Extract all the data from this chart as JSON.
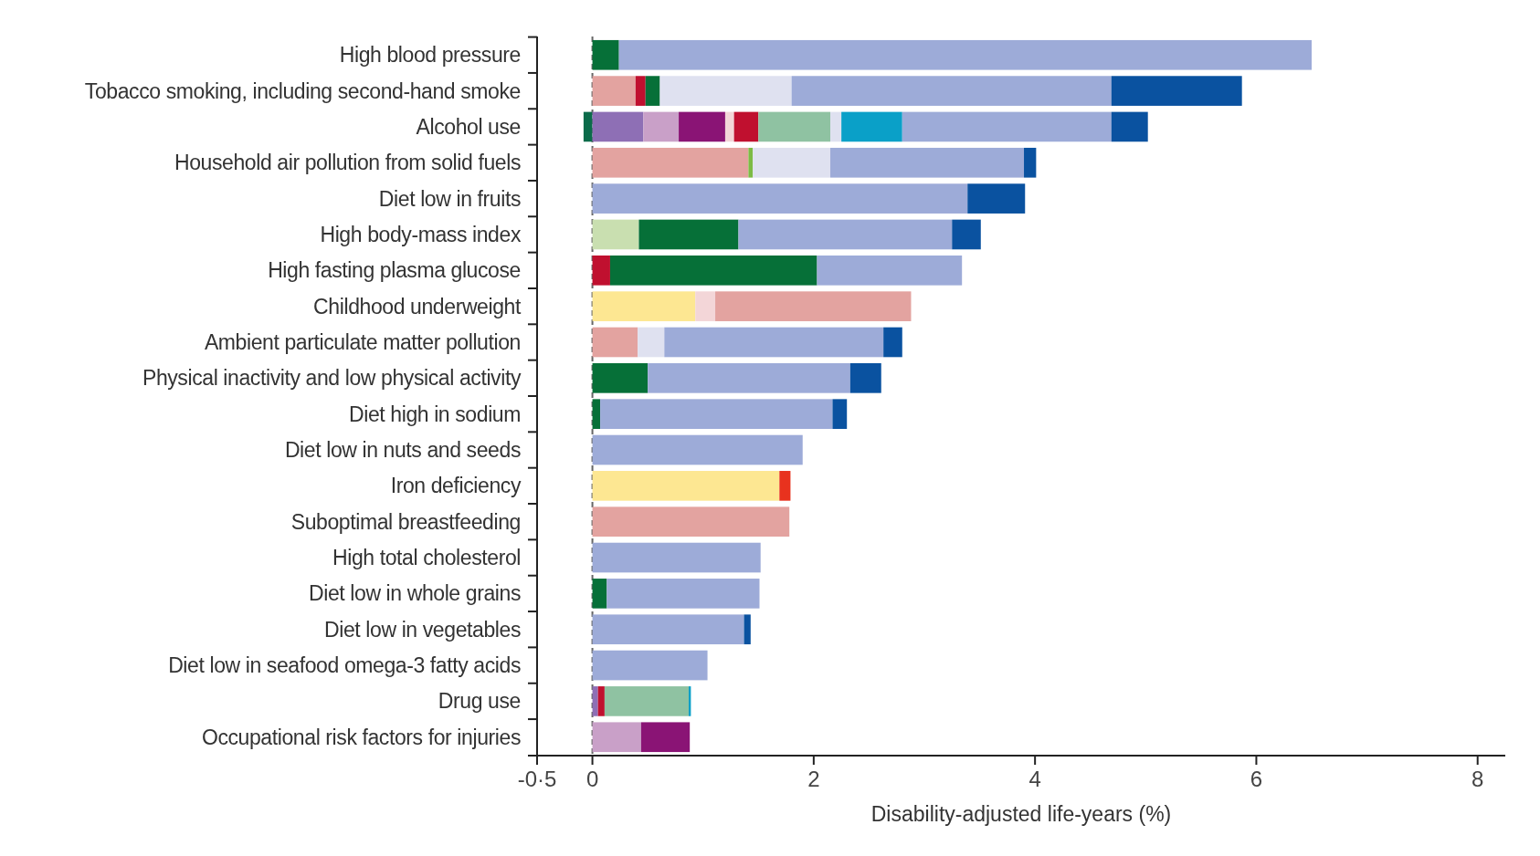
{
  "chart_data": {
    "type": "bar",
    "orientation": "horizontal",
    "stacked": true,
    "xlabel": "Disability-adjusted life-years (%)",
    "categories": [
      "High blood pressure",
      "Tobacco smoking, including second-hand smoke",
      "Alcohol use",
      "Household air pollution from solid fuels",
      "Diet low in fruits",
      "High body-mass index",
      "High fasting plasma glucose",
      "Childhood underweight",
      "Ambient particulate matter pollution",
      "Physical inactivity and low physical activity",
      "Diet high in sodium",
      "Diet low in nuts and seeds",
      "Iron deficiency",
      "Suboptimal breastfeeding",
      "High total cholesterol",
      "Diet low in whole grains",
      "Diet low in vegetables",
      "Diet low in seafood omega-3 fatty acids",
      "Drug use",
      "Occupational risk factors for injuries"
    ],
    "xlim": [
      -0.5,
      8.25
    ],
    "xticks": [
      {
        "value": -0.5,
        "label": "-0·5"
      },
      0,
      2,
      4,
      6,
      8
    ],
    "grid": false,
    "ref_lines": [
      {
        "axis": "x",
        "value": 0,
        "line_style": "dashed",
        "color": "#666666"
      }
    ],
    "series": [
      {
        "color": "#0b6b4a",
        "values": [
          null,
          null,
          -0.08,
          null,
          null,
          null,
          null,
          null,
          null,
          null,
          null,
          null,
          null,
          null,
          null,
          null,
          null,
          null,
          null,
          null
        ]
      },
      {
        "color": "#8e6fb5",
        "values": [
          null,
          null,
          0.46,
          null,
          null,
          null,
          null,
          null,
          null,
          null,
          null,
          null,
          null,
          null,
          null,
          null,
          null,
          null,
          0.05,
          null
        ]
      },
      {
        "color": "#c9a0c8",
        "values": [
          null,
          null,
          0.32,
          null,
          null,
          null,
          null,
          null,
          null,
          null,
          null,
          null,
          null,
          null,
          null,
          null,
          null,
          null,
          null,
          0.44
        ]
      },
      {
        "color": "#8a1475",
        "values": [
          null,
          null,
          0.42,
          null,
          null,
          null,
          null,
          null,
          null,
          null,
          null,
          null,
          null,
          null,
          null,
          null,
          null,
          null,
          null,
          0.44
        ]
      },
      {
        "color": "#fde792",
        "values": [
          null,
          null,
          null,
          null,
          null,
          null,
          null,
          0.93,
          null,
          null,
          null,
          null,
          1.69,
          null,
          null,
          null,
          null,
          null,
          null,
          null
        ]
      },
      {
        "color": "#f3d6d8",
        "values": [
          null,
          null,
          0.08,
          null,
          null,
          null,
          null,
          0.18,
          null,
          null,
          null,
          null,
          null,
          null,
          null,
          null,
          null,
          null,
          null,
          null
        ]
      },
      {
        "color": "#e3a3a0",
        "values": [
          null,
          0.39,
          null,
          1.41,
          null,
          null,
          null,
          1.77,
          0.41,
          null,
          null,
          null,
          null,
          1.78,
          null,
          null,
          null,
          null,
          null,
          null
        ]
      },
      {
        "color": "#e8321e",
        "values": [
          null,
          null,
          null,
          null,
          null,
          null,
          null,
          null,
          null,
          null,
          null,
          null,
          0.1,
          null,
          null,
          null,
          null,
          null,
          null,
          null
        ]
      },
      {
        "color": "#c0102f",
        "values": [
          null,
          0.09,
          0.22,
          null,
          null,
          null,
          0.16,
          null,
          null,
          null,
          null,
          null,
          null,
          null,
          null,
          null,
          null,
          null,
          0.06,
          null
        ]
      },
      {
        "color": "#c9dfb0",
        "values": [
          null,
          null,
          null,
          null,
          null,
          0.42,
          null,
          null,
          null,
          null,
          null,
          null,
          null,
          null,
          null,
          null,
          null,
          null,
          null,
          null
        ]
      },
      {
        "color": "#7dbb45",
        "values": [
          null,
          null,
          null,
          0.04,
          null,
          null,
          null,
          null,
          null,
          null,
          null,
          null,
          null,
          null,
          null,
          null,
          null,
          null,
          null,
          null
        ]
      },
      {
        "color": "#067038",
        "values": [
          0.24,
          0.13,
          null,
          null,
          null,
          0.9,
          1.87,
          null,
          null,
          0.5,
          0.07,
          null,
          null,
          null,
          null,
          0.13,
          null,
          null,
          null,
          null
        ]
      },
      {
        "color": "#8fc2a2",
        "values": [
          null,
          null,
          0.65,
          null,
          null,
          null,
          null,
          null,
          null,
          null,
          null,
          null,
          null,
          null,
          null,
          null,
          null,
          null,
          0.76,
          null
        ]
      },
      {
        "color": "#dfe1f0",
        "values": [
          null,
          1.19,
          0.1,
          0.7,
          null,
          null,
          null,
          null,
          0.24,
          null,
          null,
          null,
          null,
          null,
          null,
          null,
          null,
          null,
          null,
          null
        ]
      },
      {
        "color": "#0aa0c8",
        "values": [
          null,
          null,
          0.55,
          null,
          null,
          null,
          null,
          null,
          null,
          null,
          null,
          null,
          null,
          null,
          null,
          null,
          null,
          null,
          0.02,
          null
        ]
      },
      {
        "color": "#9dabd8",
        "values": [
          6.26,
          2.89,
          1.89,
          1.75,
          3.39,
          1.93,
          1.31,
          null,
          1.98,
          1.83,
          2.1,
          1.9,
          null,
          null,
          1.52,
          1.38,
          1.37,
          1.04,
          null,
          null
        ]
      },
      {
        "color": "#0a52a0",
        "values": [
          null,
          1.18,
          0.33,
          0.11,
          0.52,
          0.26,
          null,
          null,
          0.17,
          0.28,
          0.13,
          null,
          null,
          null,
          null,
          null,
          0.06,
          null,
          null,
          null
        ]
      }
    ]
  }
}
